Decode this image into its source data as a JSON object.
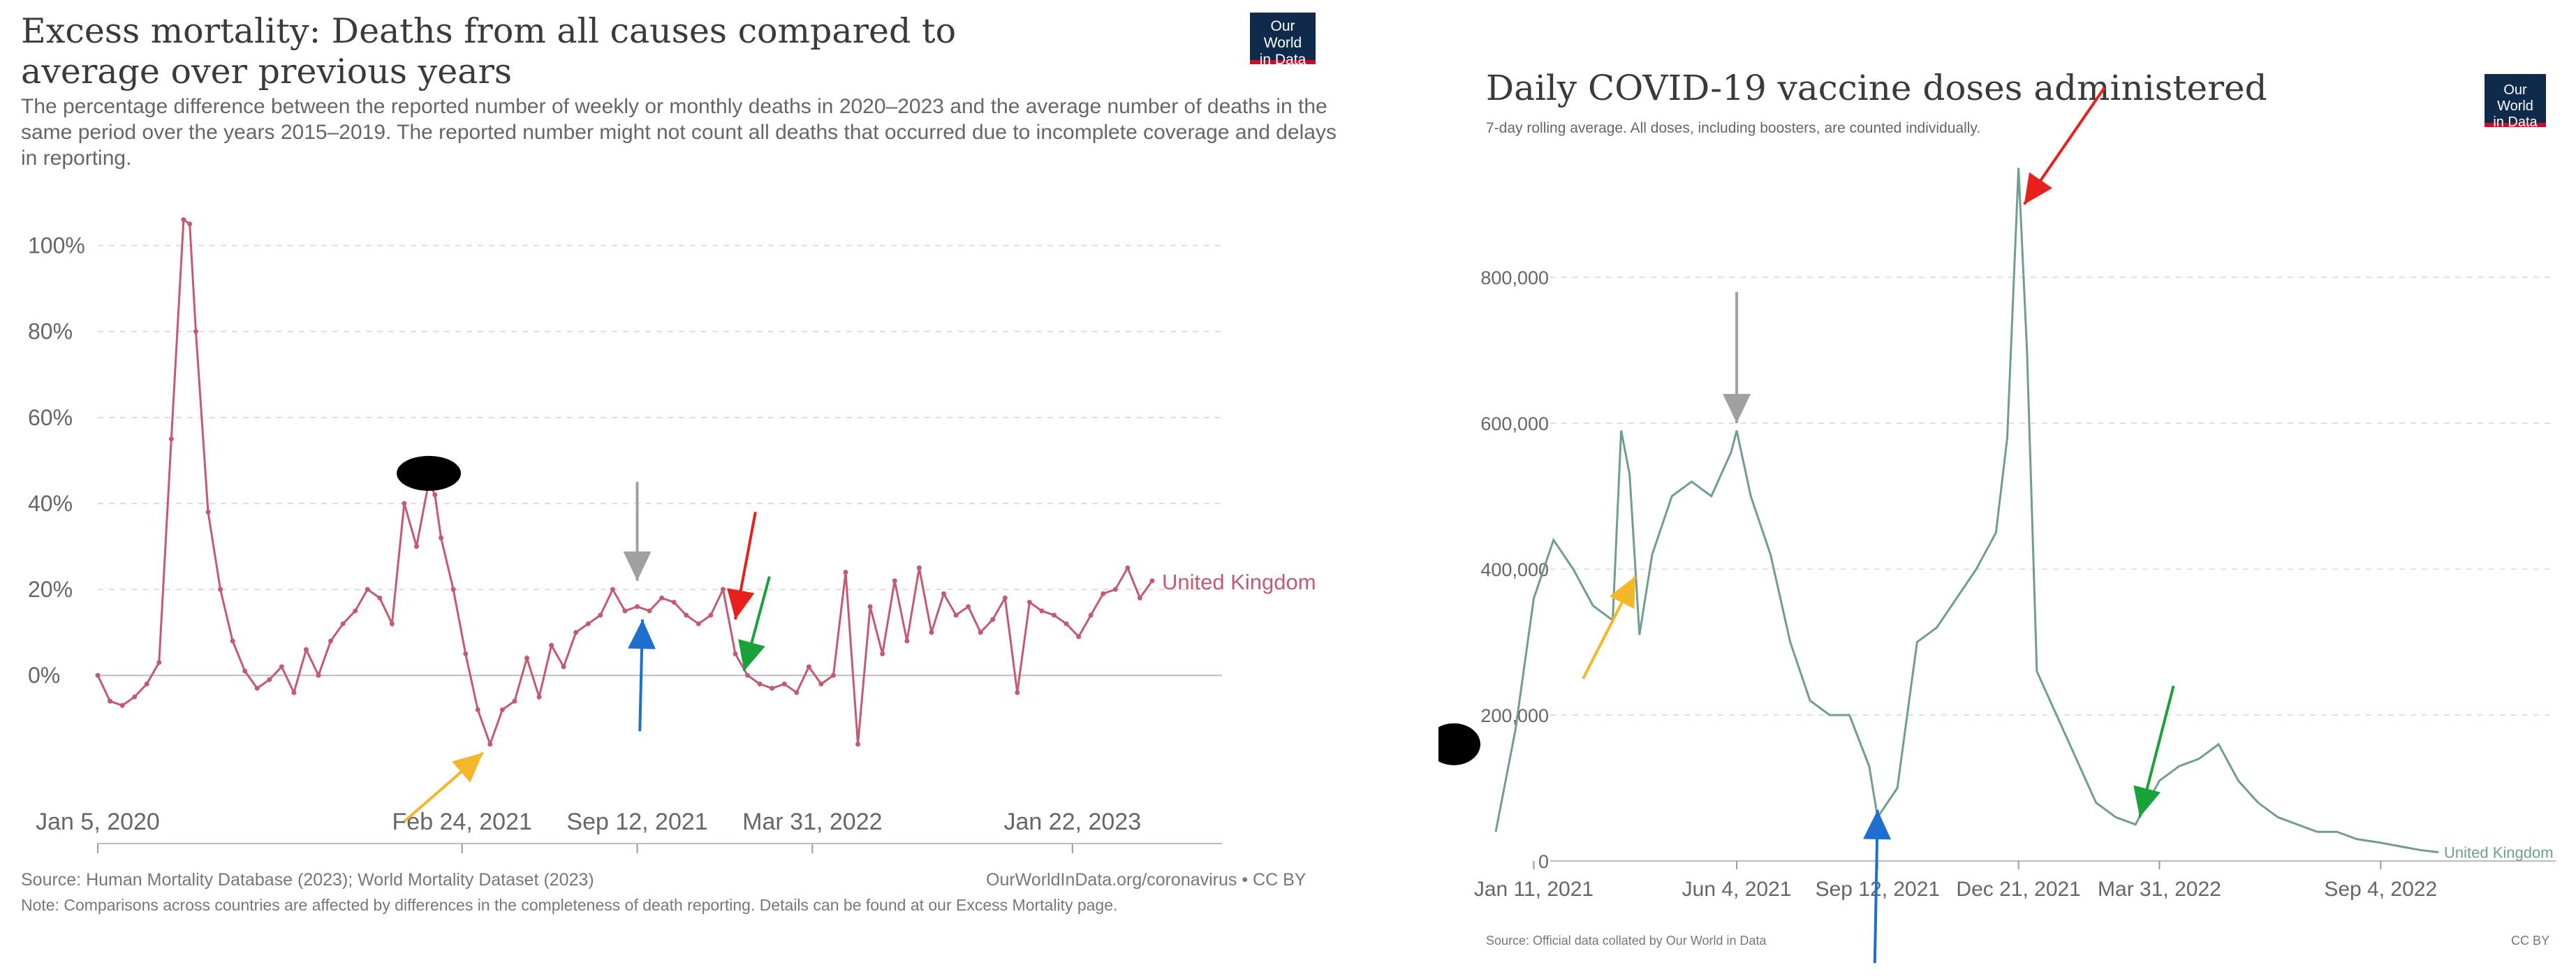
{
  "left": {
    "title": "Excess mortality: Deaths from all causes compared to average over previous years",
    "subtitle": "The percentage difference between the reported number of weekly or monthly deaths in 2020–2023 and the average number of deaths in the same period over the years 2015–2019. The reported number might not count all deaths that occurred due to incomplete coverage and delays in reporting.",
    "logo_line1": "Our World",
    "logo_line2": "in Data",
    "source": "Source: Human Mortality Database (2023); World Mortality Dataset (2023)",
    "credit": "OurWorldInData.org/coronavirus • CC BY",
    "note": "Note: Comparisons across countries are affected by differences in the completeness of death reporting. Details can be found at our Excess Mortality page."
  },
  "right": {
    "title": "Daily COVID-19 vaccine doses administered",
    "subtitle": "7-day rolling average. All doses, including boosters, are counted individually.",
    "logo_line1": "Our World",
    "logo_line2": "in Data",
    "source": "Source: Official data collated by Our World in Data",
    "credit": "CC BY"
  },
  "colors": {
    "mortality_line": "#c45a70",
    "vaccine_line": "#6f9f8c",
    "arrow_gray": "#a0a0a0",
    "arrow_red": "#e8201c",
    "arrow_green": "#19a13a",
    "arrow_blue": "#1e6fd0",
    "arrow_yellow": "#f4b72a",
    "marker_black": "#000000"
  },
  "chart_data": [
    {
      "type": "line",
      "title": "Excess mortality: Deaths from all causes compared to average over previous years",
      "xlabel": "",
      "ylabel": "",
      "x_ticks": [
        "Jan 5, 2020",
        "Feb 24, 2021",
        "Sep 12, 2021",
        "Mar 31, 2022",
        "Jan 22, 2023"
      ],
      "y_ticks": [
        "0%",
        "20%",
        "40%",
        "60%",
        "80%",
        "100%"
      ],
      "ylim": [
        -18,
        110
      ],
      "xlim": [
        "2020-01-05",
        "2023-05-01"
      ],
      "grid": true,
      "series": [
        {
          "name": "United Kingdom",
          "x": [
            "2020-01-05",
            "2020-01-19",
            "2020-02-02",
            "2020-02-16",
            "2020-03-01",
            "2020-03-15",
            "2020-03-29",
            "2020-04-12",
            "2020-04-19",
            "2020-04-26",
            "2020-05-10",
            "2020-05-24",
            "2020-06-07",
            "2020-06-21",
            "2020-07-05",
            "2020-07-19",
            "2020-08-02",
            "2020-08-16",
            "2020-08-30",
            "2020-09-13",
            "2020-09-27",
            "2020-10-11",
            "2020-10-25",
            "2020-11-08",
            "2020-11-22",
            "2020-12-06",
            "2020-12-20",
            "2021-01-03",
            "2021-01-17",
            "2021-01-24",
            "2021-01-31",
            "2021-02-14",
            "2021-02-28",
            "2021-03-14",
            "2021-03-28",
            "2021-04-11",
            "2021-04-25",
            "2021-05-09",
            "2021-05-23",
            "2021-06-06",
            "2021-06-20",
            "2021-07-04",
            "2021-07-18",
            "2021-08-01",
            "2021-08-15",
            "2021-08-29",
            "2021-09-12",
            "2021-09-26",
            "2021-10-10",
            "2021-10-24",
            "2021-11-07",
            "2021-11-21",
            "2021-12-05",
            "2021-12-19",
            "2022-01-02",
            "2022-01-16",
            "2022-01-30",
            "2022-02-13",
            "2022-02-27",
            "2022-03-13",
            "2022-03-27",
            "2022-04-10",
            "2022-04-24",
            "2022-05-08",
            "2022-05-22",
            "2022-06-05",
            "2022-06-19",
            "2022-07-03",
            "2022-07-17",
            "2022-07-31",
            "2022-08-14",
            "2022-08-28",
            "2022-09-11",
            "2022-09-25",
            "2022-10-09",
            "2022-10-23",
            "2022-11-06",
            "2022-11-20",
            "2022-12-04",
            "2022-12-18",
            "2023-01-01",
            "2023-01-15",
            "2023-01-29",
            "2023-02-12",
            "2023-02-26",
            "2023-03-12",
            "2023-03-26",
            "2023-04-09",
            "2023-04-23"
          ],
          "values": [
            0,
            -6,
            -7,
            -5,
            -2,
            3,
            55,
            106,
            105,
            80,
            38,
            20,
            8,
            1,
            -3,
            -1,
            2,
            -4,
            6,
            0,
            8,
            12,
            15,
            20,
            18,
            12,
            40,
            30,
            45,
            42,
            32,
            20,
            5,
            -8,
            -16,
            -8,
            -6,
            4,
            -5,
            7,
            2,
            10,
            12,
            14,
            20,
            15,
            16,
            15,
            18,
            17,
            14,
            12,
            14,
            20,
            5,
            0,
            -2,
            -3,
            -2,
            -4,
            2,
            -2,
            0,
            24,
            -16,
            16,
            5,
            22,
            8,
            25,
            10,
            19,
            14,
            16,
            10,
            13,
            18,
            -4,
            17,
            15,
            14,
            12,
            9,
            14,
            19,
            20,
            25,
            18,
            22
          ]
        }
      ],
      "annotations": [
        "United Kingdom"
      ]
    },
    {
      "type": "line",
      "title": "Daily COVID-19 vaccine doses administered",
      "xlabel": "",
      "ylabel": "",
      "x_ticks": [
        "Jan 11, 2021",
        "Jun 4, 2021",
        "Sep 12, 2021",
        "Dec 21, 2021",
        "Mar 31, 2022",
        "Sep 4, 2022"
      ],
      "y_ticks": [
        "0",
        "200,000",
        "400,000",
        "600,000",
        "800,000"
      ],
      "ylim": [
        0,
        960000
      ],
      "xlim": [
        "2020-12-15",
        "2022-10-15"
      ],
      "grid": true,
      "series": [
        {
          "name": "United Kingdom",
          "x": [
            "2020-12-15",
            "2020-12-29",
            "2021-01-11",
            "2021-01-25",
            "2021-02-08",
            "2021-02-22",
            "2021-03-08",
            "2021-03-14",
            "2021-03-20",
            "2021-03-27",
            "2021-04-05",
            "2021-04-19",
            "2021-05-03",
            "2021-05-17",
            "2021-05-31",
            "2021-06-04",
            "2021-06-14",
            "2021-06-28",
            "2021-07-12",
            "2021-07-26",
            "2021-08-09",
            "2021-08-23",
            "2021-09-06",
            "2021-09-12",
            "2021-09-26",
            "2021-10-10",
            "2021-10-24",
            "2021-11-07",
            "2021-11-21",
            "2021-12-05",
            "2021-12-13",
            "2021-12-21",
            "2021-12-27",
            "2022-01-03",
            "2022-01-17",
            "2022-01-31",
            "2022-02-14",
            "2022-02-28",
            "2022-03-14",
            "2022-03-31",
            "2022-04-14",
            "2022-04-28",
            "2022-05-12",
            "2022-05-26",
            "2022-06-09",
            "2022-06-23",
            "2022-07-07",
            "2022-07-21",
            "2022-08-04",
            "2022-08-18",
            "2022-09-04",
            "2022-09-18",
            "2022-10-02",
            "2022-10-15"
          ],
          "values": [
            40000,
            180000,
            360000,
            440000,
            400000,
            350000,
            330000,
            590000,
            530000,
            310000,
            420000,
            500000,
            520000,
            500000,
            560000,
            590000,
            500000,
            420000,
            300000,
            220000,
            200000,
            200000,
            130000,
            60000,
            100000,
            300000,
            320000,
            360000,
            400000,
            450000,
            580000,
            950000,
            700000,
            260000,
            200000,
            140000,
            80000,
            60000,
            50000,
            110000,
            130000,
            140000,
            160000,
            110000,
            80000,
            60000,
            50000,
            40000,
            40000,
            30000,
            25000,
            20000,
            15000,
            12000
          ]
        }
      ],
      "annotations": [
        "United Kingdom"
      ]
    }
  ]
}
